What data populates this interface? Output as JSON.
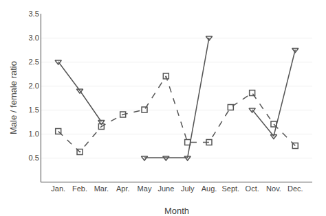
{
  "chart_data": {
    "type": "line",
    "xlabel": "Month",
    "ylabel": "Male / female ratio",
    "categories": [
      "Jan.",
      "Feb.",
      "Mar.",
      "Apr.",
      "May",
      "June",
      "July",
      "Aug.",
      "Sept.",
      "Oct.",
      "Nov.",
      "Dec."
    ],
    "series": [
      {
        "color": "#555555",
        "marker": "square",
        "line_style": "dashed",
        "values": [
          1.05,
          0.62,
          1.15,
          1.4,
          1.5,
          2.2,
          0.82,
          0.82,
          1.55,
          1.85,
          1.2,
          0.75
        ]
      },
      {
        "color": "#555555",
        "marker": "triangle-down",
        "line_style": "solid",
        "values": [
          2.5,
          1.9,
          1.25,
          null,
          0.5,
          0.5,
          0.5,
          3.0,
          null,
          1.5,
          0.95,
          2.75
        ]
      }
    ],
    "ylim": [
      0,
      3.5
    ],
    "yticks": [
      0.5,
      {
        "value": 1.0,
        "label": "1.0"
      },
      1.5,
      {
        "value": 2.0,
        "label": "2.0"
      },
      2.5,
      {
        "value": 3.0,
        "label": "3.0"
      },
      3.5
    ],
    "grid": true
  }
}
